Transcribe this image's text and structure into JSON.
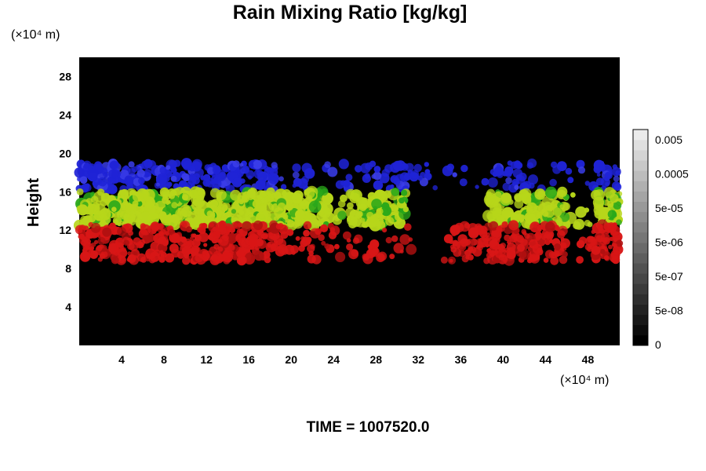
{
  "chart_data": {
    "type": "heatmap",
    "title": "Rain Mixing Ratio [kg/kg]",
    "ylabel": "Height",
    "x_unit_label": "(×10⁴ m)",
    "y_unit_label": "(×10⁴ m)",
    "x_ticks": [
      "4",
      "8",
      "12",
      "16",
      "20",
      "24",
      "28",
      "32",
      "36",
      "40",
      "44",
      "48"
    ],
    "y_ticks": [
      "4",
      "8",
      "12",
      "16",
      "20",
      "24",
      "28"
    ],
    "xlim": [
      0,
      51
    ],
    "ylim": [
      0,
      30
    ],
    "grid": false,
    "background_color": "#000000",
    "colorbar": {
      "labels": [
        "0",
        "5e-08",
        "5e-07",
        "5e-06",
        "5e-05",
        "0.0005",
        "0.005"
      ],
      "steps": 21,
      "position": "right"
    },
    "layers": [
      {
        "color": "#1f23d6",
        "label": "blue band",
        "y_range": [
          16.2,
          19.0
        ]
      },
      {
        "color": "#b7d61a",
        "label": "yellow-green band",
        "y_range": [
          12.5,
          16.0
        ]
      },
      {
        "color": "#d81616",
        "label": "red band",
        "y_range": [
          8.8,
          12.6
        ]
      }
    ],
    "annotation": "TIME = 1007520.0"
  }
}
